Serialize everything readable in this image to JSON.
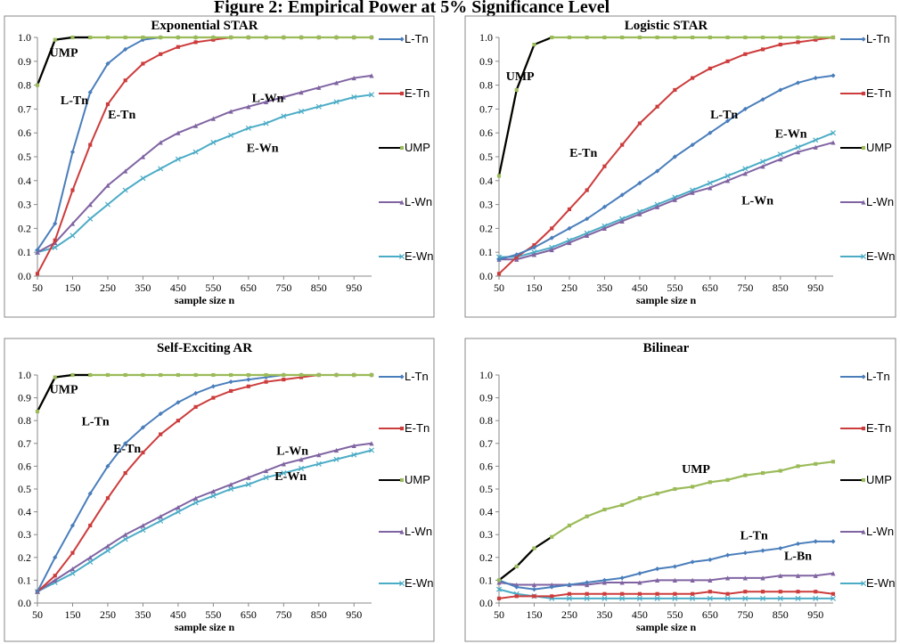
{
  "figure_title": "Figure 2: Empirical Power at 5% Significance Level",
  "legend_labels": [
    "L-Tn",
    "E-Tn",
    "UMP",
    "L-Wn",
    "E-Wn"
  ],
  "colors": {
    "L-Tn": "#4a7ebb",
    "E-Tn": "#cd3c3c",
    "UMP": "#9bbb59",
    "L-Wn": "#8064a2",
    "E-Wn": "#4bacc6"
  },
  "chart_data": [
    {
      "type": "line",
      "title": "Exponential STAR",
      "xlabel": "sample size n",
      "ylabel": "",
      "xlim": [
        50,
        1000
      ],
      "ylim": [
        0,
        1
      ],
      "xticks": [
        50,
        150,
        250,
        350,
        450,
        550,
        650,
        750,
        850,
        950
      ],
      "yticks": [
        0.0,
        0.1,
        0.2,
        0.3,
        0.4,
        0.5,
        0.6,
        0.7,
        0.8,
        0.9,
        1.0
      ],
      "legend_position": "right",
      "x": [
        50,
        100,
        150,
        200,
        250,
        300,
        350,
        400,
        450,
        500,
        550,
        600,
        650,
        700,
        750,
        800,
        850,
        900,
        950,
        1000
      ],
      "series": [
        {
          "name": "L-Tn",
          "values": [
            0.11,
            0.22,
            0.52,
            0.77,
            0.89,
            0.95,
            0.99,
            1.0,
            1.0,
            1.0,
            1.0,
            1.0,
            1.0,
            1.0,
            1.0,
            1.0,
            1.0,
            1.0,
            1.0,
            1.0
          ]
        },
        {
          "name": "E-Tn",
          "values": [
            0.01,
            0.15,
            0.36,
            0.55,
            0.72,
            0.82,
            0.89,
            0.93,
            0.96,
            0.98,
            0.99,
            1.0,
            1.0,
            1.0,
            1.0,
            1.0,
            1.0,
            1.0,
            1.0,
            1.0
          ]
        },
        {
          "name": "UMP",
          "values": [
            0.8,
            0.99,
            1.0,
            1.0,
            1.0,
            1.0,
            1.0,
            1.0,
            1.0,
            1.0,
            1.0,
            1.0,
            1.0,
            1.0,
            1.0,
            1.0,
            1.0,
            1.0,
            1.0,
            1.0
          ]
        },
        {
          "name": "L-Wn",
          "values": [
            0.1,
            0.14,
            0.22,
            0.3,
            0.38,
            0.44,
            0.5,
            0.56,
            0.6,
            0.63,
            0.66,
            0.69,
            0.71,
            0.73,
            0.75,
            0.77,
            0.79,
            0.81,
            0.83,
            0.84
          ]
        },
        {
          "name": "E-Wn",
          "values": [
            0.1,
            0.12,
            0.17,
            0.24,
            0.3,
            0.36,
            0.41,
            0.45,
            0.49,
            0.52,
            0.56,
            0.59,
            0.62,
            0.64,
            0.67,
            0.69,
            0.71,
            0.73,
            0.75,
            0.76
          ]
        }
      ],
      "annotations": [
        {
          "text": "UMP",
          "x": 125,
          "y": 0.92
        },
        {
          "text": "L-Tn",
          "x": 155,
          "y": 0.72
        },
        {
          "text": "E-Tn",
          "x": 290,
          "y": 0.66
        },
        {
          "text": "L-Wn",
          "x": 705,
          "y": 0.73
        },
        {
          "text": "E-Wn",
          "x": 690,
          "y": 0.52
        }
      ]
    },
    {
      "type": "line",
      "title": "Logistic STAR",
      "xlabel": "sample size n",
      "ylabel": "",
      "xlim": [
        50,
        1000
      ],
      "ylim": [
        0,
        1
      ],
      "xticks": [
        50,
        150,
        250,
        350,
        450,
        550,
        650,
        750,
        850,
        950
      ],
      "yticks": [
        0.0,
        0.1,
        0.2,
        0.3,
        0.4,
        0.5,
        0.6,
        0.7,
        0.8,
        0.9,
        1.0
      ],
      "legend_position": "right",
      "x": [
        50,
        100,
        150,
        200,
        250,
        300,
        350,
        400,
        450,
        500,
        550,
        600,
        650,
        700,
        750,
        800,
        850,
        900,
        950,
        1000
      ],
      "series": [
        {
          "name": "L-Tn",
          "values": [
            0.07,
            0.09,
            0.12,
            0.16,
            0.2,
            0.24,
            0.29,
            0.34,
            0.39,
            0.44,
            0.5,
            0.55,
            0.6,
            0.65,
            0.7,
            0.74,
            0.78,
            0.81,
            0.83,
            0.84
          ]
        },
        {
          "name": "E-Tn",
          "values": [
            0.01,
            0.08,
            0.13,
            0.2,
            0.28,
            0.36,
            0.46,
            0.55,
            0.64,
            0.71,
            0.78,
            0.83,
            0.87,
            0.9,
            0.93,
            0.95,
            0.97,
            0.98,
            0.99,
            1.0
          ]
        },
        {
          "name": "UMP",
          "values": [
            0.42,
            0.78,
            0.97,
            1.0,
            1.0,
            1.0,
            1.0,
            1.0,
            1.0,
            1.0,
            1.0,
            1.0,
            1.0,
            1.0,
            1.0,
            1.0,
            1.0,
            1.0,
            1.0,
            1.0
          ]
        },
        {
          "name": "L-Wn",
          "values": [
            0.07,
            0.07,
            0.09,
            0.11,
            0.14,
            0.17,
            0.2,
            0.23,
            0.26,
            0.29,
            0.32,
            0.35,
            0.37,
            0.4,
            0.43,
            0.46,
            0.49,
            0.52,
            0.54,
            0.56
          ]
        },
        {
          "name": "E-Wn",
          "values": [
            0.08,
            0.08,
            0.1,
            0.12,
            0.15,
            0.18,
            0.21,
            0.24,
            0.27,
            0.3,
            0.33,
            0.36,
            0.39,
            0.42,
            0.45,
            0.48,
            0.51,
            0.54,
            0.57,
            0.6
          ]
        }
      ],
      "annotations": [
        {
          "text": "UMP",
          "x": 110,
          "y": 0.82
        },
        {
          "text": "L-Tn",
          "x": 690,
          "y": 0.66
        },
        {
          "text": "E-Tn",
          "x": 290,
          "y": 0.5
        },
        {
          "text": "E-Wn",
          "x": 880,
          "y": 0.58
        },
        {
          "text": "L-Wn",
          "x": 785,
          "y": 0.3
        }
      ]
    },
    {
      "type": "line",
      "title": "Self-Exciting AR",
      "xlabel": "sample size n",
      "ylabel": "",
      "xlim": [
        50,
        1000
      ],
      "ylim": [
        0,
        1
      ],
      "xticks": [
        50,
        150,
        250,
        350,
        450,
        550,
        650,
        750,
        850,
        950
      ],
      "yticks": [
        0.0,
        0.1,
        0.2,
        0.3,
        0.4,
        0.5,
        0.6,
        0.7,
        0.8,
        0.9,
        1.0
      ],
      "legend_position": "right",
      "x": [
        50,
        100,
        150,
        200,
        250,
        300,
        350,
        400,
        450,
        500,
        550,
        600,
        650,
        700,
        750,
        800,
        850,
        900,
        950,
        1000
      ],
      "series": [
        {
          "name": "L-Tn",
          "values": [
            0.05,
            0.2,
            0.34,
            0.48,
            0.6,
            0.7,
            0.77,
            0.83,
            0.88,
            0.92,
            0.95,
            0.97,
            0.98,
            0.99,
            1.0,
            1.0,
            1.0,
            1.0,
            1.0,
            1.0
          ]
        },
        {
          "name": "E-Tn",
          "values": [
            0.05,
            0.12,
            0.22,
            0.34,
            0.46,
            0.57,
            0.66,
            0.74,
            0.8,
            0.86,
            0.9,
            0.93,
            0.95,
            0.97,
            0.98,
            0.99,
            1.0,
            1.0,
            1.0,
            1.0
          ]
        },
        {
          "name": "UMP",
          "values": [
            0.84,
            0.99,
            1.0,
            1.0,
            1.0,
            1.0,
            1.0,
            1.0,
            1.0,
            1.0,
            1.0,
            1.0,
            1.0,
            1.0,
            1.0,
            1.0,
            1.0,
            1.0,
            1.0,
            1.0
          ]
        },
        {
          "name": "L-Wn",
          "values": [
            0.05,
            0.1,
            0.15,
            0.2,
            0.25,
            0.3,
            0.34,
            0.38,
            0.42,
            0.46,
            0.49,
            0.52,
            0.55,
            0.58,
            0.61,
            0.63,
            0.65,
            0.67,
            0.69,
            0.7
          ]
        },
        {
          "name": "E-Wn",
          "values": [
            0.05,
            0.09,
            0.13,
            0.18,
            0.23,
            0.28,
            0.32,
            0.36,
            0.4,
            0.44,
            0.47,
            0.5,
            0.52,
            0.55,
            0.57,
            0.59,
            0.61,
            0.63,
            0.65,
            0.67
          ]
        }
      ],
      "annotations": [
        {
          "text": "UMP",
          "x": 125,
          "y": 0.92
        },
        {
          "text": "L-Tn",
          "x": 215,
          "y": 0.78
        },
        {
          "text": "E-Tn",
          "x": 305,
          "y": 0.66
        },
        {
          "text": "L-Wn",
          "x": 775,
          "y": 0.65
        },
        {
          "text": "E-Wn",
          "x": 770,
          "y": 0.54
        }
      ]
    },
    {
      "type": "line",
      "title": "Bilinear",
      "xlabel": "sample size n",
      "ylabel": "",
      "xlim": [
        50,
        1000
      ],
      "ylim": [
        0,
        1
      ],
      "xticks": [
        50,
        150,
        250,
        350,
        450,
        550,
        650,
        750,
        850,
        950
      ],
      "yticks": [
        0.0,
        0.1,
        0.2,
        0.3,
        0.4,
        0.5,
        0.6,
        0.7,
        0.8,
        0.9,
        1.0
      ],
      "legend_position": "right",
      "legend_labels": [
        "L-Tn",
        "E-Tn",
        "UMP",
        "L-Wn",
        "E-Wn"
      ],
      "x": [
        50,
        100,
        150,
        200,
        250,
        300,
        350,
        400,
        450,
        500,
        550,
        600,
        650,
        700,
        750,
        800,
        850,
        900,
        950,
        1000
      ],
      "series": [
        {
          "name": "L-Tn",
          "values": [
            0.1,
            0.07,
            0.06,
            0.07,
            0.08,
            0.09,
            0.1,
            0.11,
            0.13,
            0.15,
            0.16,
            0.18,
            0.19,
            0.21,
            0.22,
            0.23,
            0.24,
            0.26,
            0.27,
            0.27
          ]
        },
        {
          "name": "E-Tn",
          "values": [
            0.02,
            0.03,
            0.03,
            0.03,
            0.04,
            0.04,
            0.04,
            0.04,
            0.04,
            0.04,
            0.04,
            0.04,
            0.05,
            0.04,
            0.05,
            0.05,
            0.05,
            0.05,
            0.05,
            0.04
          ]
        },
        {
          "name": "UMP",
          "values": [
            0.1,
            0.16,
            0.24,
            0.29,
            0.34,
            0.38,
            0.41,
            0.43,
            0.46,
            0.48,
            0.5,
            0.51,
            0.53,
            0.54,
            0.56,
            0.57,
            0.58,
            0.6,
            0.61,
            0.62
          ]
        },
        {
          "name": "L-Wn",
          "values": [
            0.09,
            0.08,
            0.08,
            0.08,
            0.08,
            0.08,
            0.09,
            0.09,
            0.09,
            0.1,
            0.1,
            0.1,
            0.1,
            0.11,
            0.11,
            0.11,
            0.12,
            0.12,
            0.12,
            0.13
          ]
        },
        {
          "name": "E-Wn",
          "values": [
            0.06,
            0.04,
            0.03,
            0.02,
            0.02,
            0.02,
            0.02,
            0.02,
            0.02,
            0.02,
            0.02,
            0.02,
            0.02,
            0.02,
            0.02,
            0.02,
            0.02,
            0.02,
            0.02,
            0.02
          ]
        }
      ],
      "annotations": [
        {
          "text": "UMP",
          "x": 610,
          "y": 0.57
        },
        {
          "text": "L-Tn",
          "x": 775,
          "y": 0.28
        },
        {
          "text": "L-Bn",
          "x": 900,
          "y": 0.19
        }
      ]
    }
  ]
}
